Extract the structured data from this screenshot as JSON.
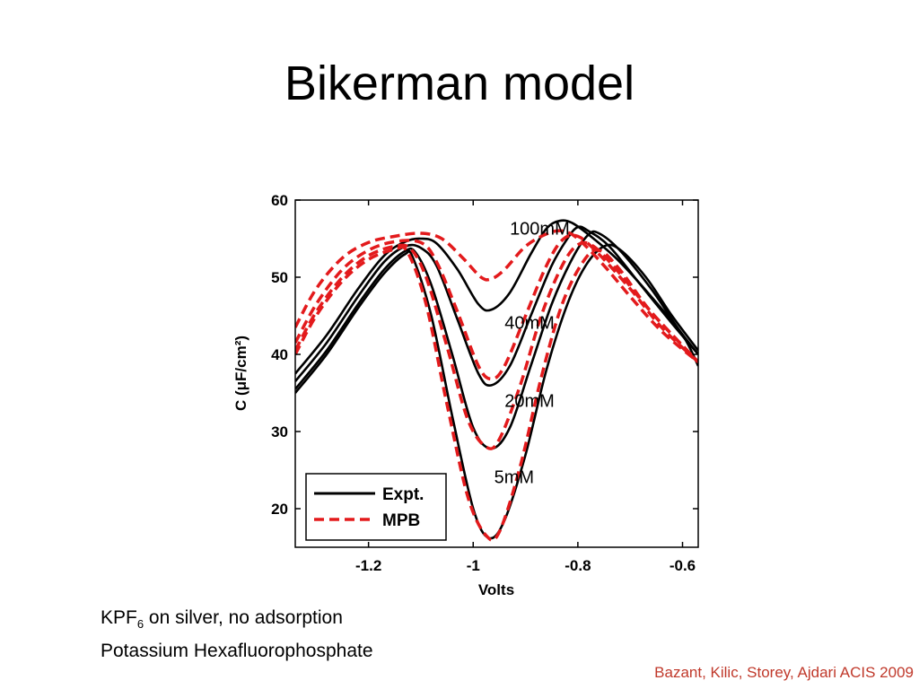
{
  "slide": {
    "title": "Bikerman model",
    "caption_line1_prefix": "KPF",
    "caption_line1_sub": "6",
    "caption_line1_rest": " on silver, no adsorption",
    "caption_line2": "Potassium Hexafluorophosphate",
    "citation": "Bazant, Kilic, Storey, Ajdari  ACIS 2009"
  },
  "colors": {
    "expt": "#000000",
    "mpb": "#e31a1c",
    "citation": "#c0392b"
  },
  "chart_data": {
    "type": "line",
    "title": "",
    "xlabel": "Volts",
    "ylabel": "C  (μF/cm²)",
    "xlim": [
      -1.34,
      -0.57
    ],
    "ylim": [
      15,
      60
    ],
    "xticks": [
      -1.2,
      -1,
      -0.8,
      -0.6
    ],
    "yticks": [
      20,
      30,
      40,
      50,
      60
    ],
    "xtick_labels": [
      "-1.2",
      "-1",
      "-0.8",
      "-0.6"
    ],
    "ytick_labels": [
      "20",
      "30",
      "40",
      "50",
      "60"
    ],
    "legend": {
      "position": "bottom-left",
      "entries": [
        {
          "label": "Expt.",
          "style": "solid",
          "color": "#000000"
        },
        {
          "label": "MPB",
          "style": "dashed",
          "color": "#e31a1c"
        }
      ]
    },
    "annotations": [
      {
        "text": "100mM",
        "x": -0.93,
        "y": 55.5
      },
      {
        "text": "40mM",
        "x": -0.94,
        "y": 43.3
      },
      {
        "text": "20mM",
        "x": -0.94,
        "y": 33.2
      },
      {
        "text": "5mM",
        "x": -0.96,
        "y": 23.3
      }
    ],
    "series": [
      {
        "style": "solid",
        "color": "#000000",
        "points": [
          [
            -1.34,
            37.5
          ],
          [
            -1.28,
            42.5
          ],
          [
            -1.22,
            48.5
          ],
          [
            -1.17,
            52.8
          ],
          [
            -1.13,
            54.6
          ],
          [
            -1.1,
            55.0
          ],
          [
            -1.07,
            54.4
          ],
          [
            -1.03,
            51.0
          ],
          [
            -0.99,
            46.5
          ],
          [
            -0.965,
            45.8
          ],
          [
            -0.93,
            48.0
          ],
          [
            -0.89,
            53.0
          ],
          [
            -0.86,
            56.3
          ],
          [
            -0.835,
            57.3
          ],
          [
            -0.81,
            57.0
          ],
          [
            -0.77,
            55.0
          ],
          [
            -0.72,
            52.0
          ],
          [
            -0.66,
            47.5
          ],
          [
            -0.6,
            42.5
          ],
          [
            -0.57,
            38.5
          ]
        ]
      },
      {
        "style": "solid",
        "color": "#000000",
        "points": [
          [
            -1.34,
            36.5
          ],
          [
            -1.28,
            41.5
          ],
          [
            -1.22,
            47.5
          ],
          [
            -1.17,
            52.0
          ],
          [
            -1.13,
            54.0
          ],
          [
            -1.1,
            53.8
          ],
          [
            -1.07,
            51.5
          ],
          [
            -1.03,
            44.5
          ],
          [
            -0.99,
            37.5
          ],
          [
            -0.965,
            36.0
          ],
          [
            -0.93,
            38.5
          ],
          [
            -0.89,
            45.0
          ],
          [
            -0.85,
            51.5
          ],
          [
            -0.82,
            55.0
          ],
          [
            -0.8,
            56.5
          ],
          [
            -0.78,
            56.0
          ],
          [
            -0.74,
            54.0
          ],
          [
            -0.68,
            49.0
          ],
          [
            -0.62,
            44.0
          ],
          [
            -0.57,
            40.0
          ]
        ]
      },
      {
        "style": "solid",
        "color": "#000000",
        "points": [
          [
            -1.34,
            35.5
          ],
          [
            -1.28,
            40.5
          ],
          [
            -1.22,
            46.5
          ],
          [
            -1.17,
            51.0
          ],
          [
            -1.13,
            53.4
          ],
          [
            -1.11,
            53.2
          ],
          [
            -1.08,
            49.0
          ],
          [
            -1.04,
            40.0
          ],
          [
            -1.0,
            30.5
          ],
          [
            -0.965,
            27.8
          ],
          [
            -0.93,
            30.5
          ],
          [
            -0.89,
            38.5
          ],
          [
            -0.85,
            46.5
          ],
          [
            -0.81,
            52.5
          ],
          [
            -0.78,
            55.5
          ],
          [
            -0.76,
            55.7
          ],
          [
            -0.72,
            53.5
          ],
          [
            -0.66,
            48.5
          ],
          [
            -0.61,
            43.5
          ],
          [
            -0.57,
            40.0
          ]
        ]
      },
      {
        "style": "solid",
        "color": "#000000",
        "points": [
          [
            -1.34,
            35.0
          ],
          [
            -1.28,
            40.0
          ],
          [
            -1.22,
            46.0
          ],
          [
            -1.17,
            50.5
          ],
          [
            -1.13,
            53.0
          ],
          [
            -1.115,
            52.5
          ],
          [
            -1.08,
            45.0
          ],
          [
            -1.04,
            32.0
          ],
          [
            -1.0,
            20.0
          ],
          [
            -0.97,
            16.2
          ],
          [
            -0.94,
            18.5
          ],
          [
            -0.9,
            27.0
          ],
          [
            -0.86,
            38.0
          ],
          [
            -0.82,
            46.5
          ],
          [
            -0.785,
            51.5
          ],
          [
            -0.75,
            54.0
          ],
          [
            -0.72,
            53.6
          ],
          [
            -0.67,
            50.0
          ],
          [
            -0.62,
            45.0
          ],
          [
            -0.57,
            40.5
          ]
        ]
      },
      {
        "style": "dashed",
        "color": "#e31a1c",
        "points": [
          [
            -1.34,
            43.5
          ],
          [
            -1.3,
            48.5
          ],
          [
            -1.25,
            52.5
          ],
          [
            -1.2,
            54.5
          ],
          [
            -1.15,
            55.3
          ],
          [
            -1.1,
            55.7
          ],
          [
            -1.06,
            55.0
          ],
          [
            -1.02,
            52.5
          ],
          [
            -0.985,
            50.0
          ],
          [
            -0.965,
            49.8
          ],
          [
            -0.94,
            51.0
          ],
          [
            -0.9,
            54.0
          ],
          [
            -0.86,
            55.6
          ],
          [
            -0.83,
            56.0
          ],
          [
            -0.8,
            55.0
          ],
          [
            -0.75,
            51.5
          ],
          [
            -0.7,
            47.5
          ],
          [
            -0.64,
            43.0
          ],
          [
            -0.57,
            39.0
          ]
        ]
      },
      {
        "style": "dashed",
        "color": "#e31a1c",
        "points": [
          [
            -1.34,
            41.5
          ],
          [
            -1.3,
            46.5
          ],
          [
            -1.25,
            51.0
          ],
          [
            -1.2,
            53.5
          ],
          [
            -1.15,
            54.6
          ],
          [
            -1.1,
            54.5
          ],
          [
            -1.07,
            52.0
          ],
          [
            -1.03,
            45.5
          ],
          [
            -0.99,
            38.5
          ],
          [
            -0.965,
            36.8
          ],
          [
            -0.94,
            38.5
          ],
          [
            -0.9,
            45.0
          ],
          [
            -0.86,
            51.5
          ],
          [
            -0.83,
            54.8
          ],
          [
            -0.8,
            55.3
          ],
          [
            -0.76,
            53.0
          ],
          [
            -0.7,
            48.5
          ],
          [
            -0.64,
            43.5
          ],
          [
            -0.57,
            39.0
          ]
        ]
      },
      {
        "style": "dashed",
        "color": "#e31a1c",
        "points": [
          [
            -1.34,
            40.5
          ],
          [
            -1.3,
            45.5
          ],
          [
            -1.25,
            50.0
          ],
          [
            -1.2,
            52.8
          ],
          [
            -1.15,
            54.0
          ],
          [
            -1.12,
            53.7
          ],
          [
            -1.09,
            50.0
          ],
          [
            -1.05,
            41.0
          ],
          [
            -1.01,
            31.5
          ],
          [
            -0.975,
            28.0
          ],
          [
            -0.95,
            29.0
          ],
          [
            -0.91,
            36.0
          ],
          [
            -0.87,
            45.0
          ],
          [
            -0.83,
            51.5
          ],
          [
            -0.8,
            54.2
          ],
          [
            -0.77,
            54.0
          ],
          [
            -0.72,
            50.5
          ],
          [
            -0.66,
            45.5
          ],
          [
            -0.57,
            39.0
          ]
        ]
      },
      {
        "style": "dashed",
        "color": "#e31a1c",
        "points": [
          [
            -1.34,
            40.0
          ],
          [
            -1.3,
            45.0
          ],
          [
            -1.25,
            49.5
          ],
          [
            -1.2,
            52.3
          ],
          [
            -1.15,
            53.6
          ],
          [
            -1.125,
            53.2
          ],
          [
            -1.09,
            46.5
          ],
          [
            -1.05,
            33.5
          ],
          [
            -1.01,
            21.5
          ],
          [
            -0.975,
            16.5
          ],
          [
            -0.95,
            17.0
          ],
          [
            -0.91,
            25.5
          ],
          [
            -0.87,
            37.0
          ],
          [
            -0.83,
            46.5
          ],
          [
            -0.79,
            52.0
          ],
          [
            -0.76,
            53.5
          ],
          [
            -0.72,
            51.0
          ],
          [
            -0.66,
            45.5
          ],
          [
            -0.57,
            39.0
          ]
        ]
      }
    ]
  }
}
